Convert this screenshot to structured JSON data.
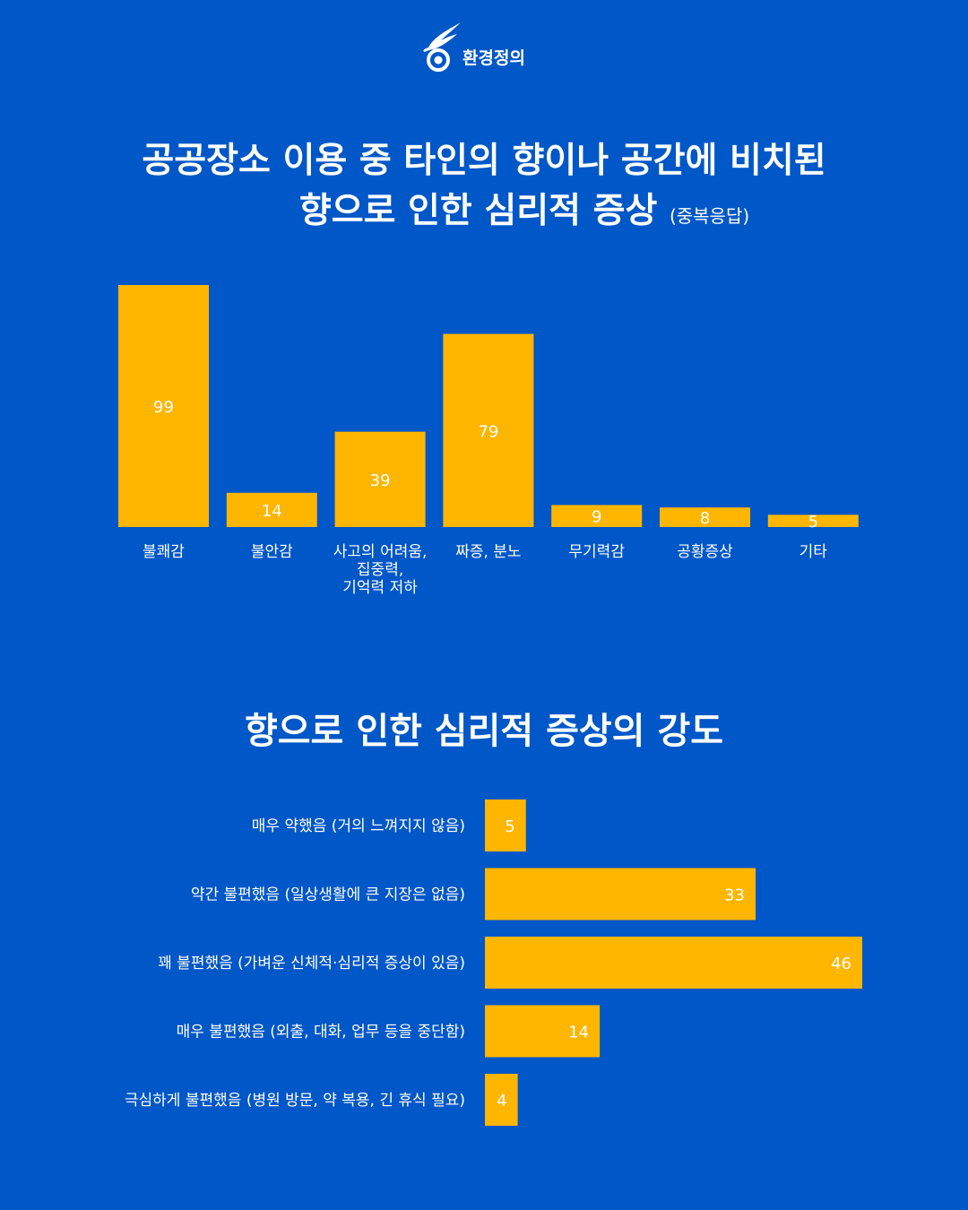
{
  "logo": {
    "text": "환경정의"
  },
  "title_main": {
    "line1": "공공장소 이용 중 타인의 향이나 공간에 비치된",
    "line2": "향으로 인한 심리적 증상",
    "note": "(중복응답)"
  },
  "title_second": "향으로 인한 심리적 증상의 강도",
  "colors": {
    "background": "#0057c7",
    "bar": "#ffb600",
    "text": "#ffffff"
  },
  "chart_data": [
    {
      "type": "bar",
      "categories": [
        "불쾌감",
        "불안감",
        "사고의 어려움,\n집중력,\n기억력 저하",
        "짜증, 분노",
        "무기력감",
        "공황증상",
        "기타"
      ],
      "values": [
        99,
        14,
        39,
        79,
        9,
        8,
        5
      ],
      "title": "공공장소 이용 중 타인의 향이나 공간에 비치된 향으로 인한 심리적 증상 (중복응답)",
      "ylim": [
        0,
        99
      ],
      "grid": false,
      "legend": "none"
    },
    {
      "type": "bar",
      "orientation": "horizontal",
      "categories": [
        "매우 약했음 (거의 느껴지지 않음)",
        "약간 불편했음 (일상생활에 큰 지장은 없음)",
        "꽤 불편했음 (가벼운 신체적·심리적 증상이 있음)",
        "매우 불편했음 (외출, 대화, 업무 등을 중단함)",
        "극심하게 불편했음 (병원 방문, 약 복용, 긴 휴식 필요)"
      ],
      "values": [
        5,
        33,
        46,
        14,
        4
      ],
      "title": "향으로 인한 심리적 증상의 강도",
      "xlim": [
        0,
        46
      ],
      "grid": false,
      "legend": "none"
    }
  ]
}
